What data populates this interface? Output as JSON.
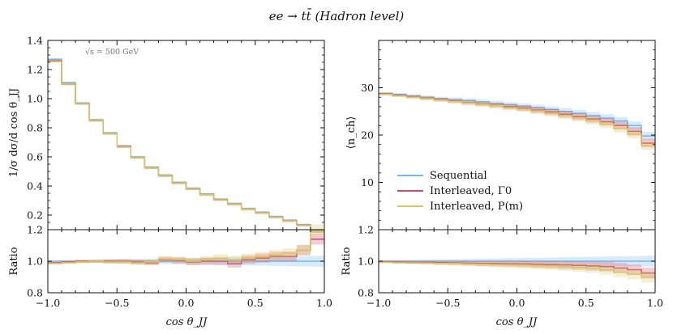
{
  "figure": {
    "title": "ee → tt̄ (Hadron level)",
    "annotation": "√s = 500 GeV"
  },
  "colors": {
    "Sequential": "#73b6f0",
    "Interleaved, Γ0": "#cf4b62",
    "Interleaved, P(m)": "#d8c563"
  },
  "chart_data": [
    {
      "type": "line",
      "id": "left-top",
      "title": "",
      "xlabel": "",
      "ylabel": "1/σ dσ/d cos θ_JJ",
      "xlim": [
        -1.0,
        1.0
      ],
      "ylim": [
        0.1,
        1.4
      ],
      "yticks": [
        0.2,
        0.4,
        0.6,
        0.8,
        1.0,
        1.2,
        1.4
      ],
      "ytick_labels": [
        "0.2",
        "0.4",
        "0.6",
        "0.8",
        "1.0",
        "1.2",
        "1.4"
      ],
      "bin_edges": [
        -1.0,
        -0.9,
        -0.8,
        -0.7,
        -0.6,
        -0.5,
        -0.4,
        -0.3,
        -0.2,
        -0.1,
        0.0,
        0.1,
        0.2,
        0.3,
        0.4,
        0.5,
        0.6,
        0.7,
        0.8,
        0.9,
        1.0
      ],
      "series": [
        {
          "name": "Sequential",
          "values": [
            1.27,
            1.11,
            0.97,
            0.855,
            0.765,
            0.675,
            0.6,
            0.53,
            0.475,
            0.425,
            0.385,
            0.345,
            0.31,
            0.28,
            0.245,
            0.22,
            0.19,
            0.165,
            0.135,
            0.09
          ]
        },
        {
          "name": "Interleaved, Γ0",
          "values": [
            1.26,
            1.1,
            0.965,
            0.85,
            0.76,
            0.67,
            0.595,
            0.525,
            0.47,
            0.42,
            0.38,
            0.34,
            0.305,
            0.275,
            0.24,
            0.215,
            0.185,
            0.16,
            0.13,
            0.085
          ]
        },
        {
          "name": "Interleaved, P(m)",
          "values": [
            1.255,
            1.1,
            0.965,
            0.85,
            0.76,
            0.668,
            0.595,
            0.525,
            0.47,
            0.42,
            0.38,
            0.34,
            0.305,
            0.275,
            0.24,
            0.215,
            0.185,
            0.16,
            0.13,
            0.085
          ]
        }
      ]
    },
    {
      "type": "line",
      "id": "left-ratio",
      "xlabel": "cos θ_JJ",
      "ylabel": "Ratio",
      "xlim": [
        -1.0,
        1.0
      ],
      "ylim": [
        0.8,
        1.2
      ],
      "yticks": [
        0.8,
        1.0,
        1.2
      ],
      "ytick_labels": [
        "0.8",
        "1.0",
        "1.2"
      ],
      "xticks": [
        -1.0,
        -0.5,
        0.0,
        0.5,
        1.0
      ],
      "xtick_labels": [
        "−1.0",
        "−0.5",
        "0.0",
        "0.5",
        "1.0"
      ],
      "bin_edges": [
        -1.0,
        -0.9,
        -0.8,
        -0.7,
        -0.6,
        -0.5,
        -0.4,
        -0.3,
        -0.2,
        -0.1,
        0.0,
        0.1,
        0.2,
        0.3,
        0.4,
        0.5,
        0.6,
        0.7,
        0.8,
        0.9,
        1.0
      ],
      "series": [
        {
          "name": "Sequential",
          "values": [
            1.0,
            1.0,
            1.0,
            1.0,
            1.0,
            1.0,
            1.0,
            1.0,
            1.0,
            1.0,
            1.0,
            1.0,
            1.0,
            1.0,
            1.0,
            1.0,
            1.0,
            1.0,
            1.0,
            1.0
          ]
        },
        {
          "name": "Interleaved, Γ0",
          "values": [
            0.99,
            0.995,
            1.0,
            1.0,
            1.0,
            1.0,
            0.995,
            0.99,
            1.01,
            1.005,
            0.995,
            1.0,
            1.0,
            0.985,
            1.01,
            1.02,
            1.03,
            1.03,
            1.07,
            1.14
          ]
        },
        {
          "name": "Interleaved, P(m)",
          "values": [
            0.985,
            0.99,
            0.995,
            1.0,
            0.995,
            0.995,
            0.99,
            0.995,
            1.015,
            1.01,
            1.0,
            1.01,
            1.02,
            1.01,
            1.02,
            1.03,
            1.04,
            1.05,
            1.07,
            1.2
          ]
        }
      ]
    },
    {
      "type": "line",
      "id": "right-top",
      "xlabel": "",
      "ylabel": "⟨n_ch⟩",
      "xlim": [
        -1.0,
        1.0
      ],
      "ylim": [
        0,
        40
      ],
      "yticks": [
        10,
        20,
        30
      ],
      "ytick_labels": [
        "10",
        "20",
        "30"
      ],
      "bin_edges": [
        -1.0,
        -0.9,
        -0.8,
        -0.7,
        -0.6,
        -0.5,
        -0.4,
        -0.3,
        -0.2,
        -0.1,
        0.0,
        0.1,
        0.2,
        0.3,
        0.4,
        0.5,
        0.6,
        0.7,
        0.8,
        0.9,
        1.0
      ],
      "series": [
        {
          "name": "Sequential",
          "values": [
            28.8,
            28.6,
            28.3,
            28.0,
            27.7,
            27.5,
            27.3,
            27.0,
            26.7,
            26.4,
            26.1,
            25.8,
            25.4,
            25.0,
            24.6,
            24.1,
            23.6,
            23.0,
            22.0,
            19.8
          ]
        },
        {
          "name": "Interleaved, Γ0",
          "values": [
            28.7,
            28.4,
            28.1,
            27.8,
            27.5,
            27.2,
            26.9,
            26.6,
            26.3,
            26.0,
            25.7,
            25.3,
            24.9,
            24.4,
            23.9,
            23.4,
            22.8,
            22.0,
            20.8,
            18.3
          ]
        },
        {
          "name": "Interleaved, P(m)",
          "values": [
            28.6,
            28.3,
            28.0,
            27.7,
            27.4,
            27.1,
            26.8,
            26.5,
            26.2,
            25.8,
            25.5,
            25.1,
            24.6,
            24.1,
            23.6,
            23.0,
            22.3,
            21.4,
            20.2,
            17.8
          ]
        }
      ]
    },
    {
      "type": "line",
      "id": "right-ratio",
      "xlabel": "cos θ_JJ",
      "ylabel": "Ratio",
      "xlim": [
        -1.0,
        1.0
      ],
      "ylim": [
        0.8,
        1.2
      ],
      "yticks": [
        0.8,
        1.0,
        1.2
      ],
      "ytick_labels": [
        "0.8",
        "1.0",
        "1.2"
      ],
      "xticks": [
        -1.0,
        -0.5,
        0.0,
        0.5,
        1.0
      ],
      "xtick_labels": [
        "−1.0",
        "−0.5",
        "0.0",
        "0.5",
        "1.0"
      ],
      "bin_edges": [
        -1.0,
        -0.9,
        -0.8,
        -0.7,
        -0.6,
        -0.5,
        -0.4,
        -0.3,
        -0.2,
        -0.1,
        0.0,
        0.1,
        0.2,
        0.3,
        0.4,
        0.5,
        0.6,
        0.7,
        0.8,
        0.9,
        1.0
      ],
      "series": [
        {
          "name": "Sequential",
          "values": [
            1.0,
            1.0,
            1.0,
            1.0,
            1.0,
            1.0,
            1.0,
            1.0,
            1.0,
            1.0,
            1.0,
            1.0,
            1.0,
            1.0,
            1.0,
            1.0,
            1.0,
            1.0,
            1.0,
            1.0
          ]
        },
        {
          "name": "Interleaved, Γ0",
          "values": [
            0.997,
            0.995,
            0.993,
            0.993,
            0.991,
            0.99,
            0.988,
            0.986,
            0.985,
            0.984,
            0.983,
            0.981,
            0.978,
            0.976,
            0.973,
            0.97,
            0.966,
            0.957,
            0.946,
            0.925
          ]
        },
        {
          "name": "Interleaved, P(m)",
          "values": [
            0.993,
            0.99,
            0.989,
            0.988,
            0.986,
            0.985,
            0.983,
            0.981,
            0.979,
            0.977,
            0.975,
            0.972,
            0.97,
            0.965,
            0.96,
            0.955,
            0.945,
            0.93,
            0.918,
            0.9
          ]
        }
      ]
    }
  ],
  "legend": {
    "placement": "lower-left",
    "entries": [
      "Sequential",
      "Interleaved, Γ0",
      "Interleaved, P(m)"
    ]
  }
}
